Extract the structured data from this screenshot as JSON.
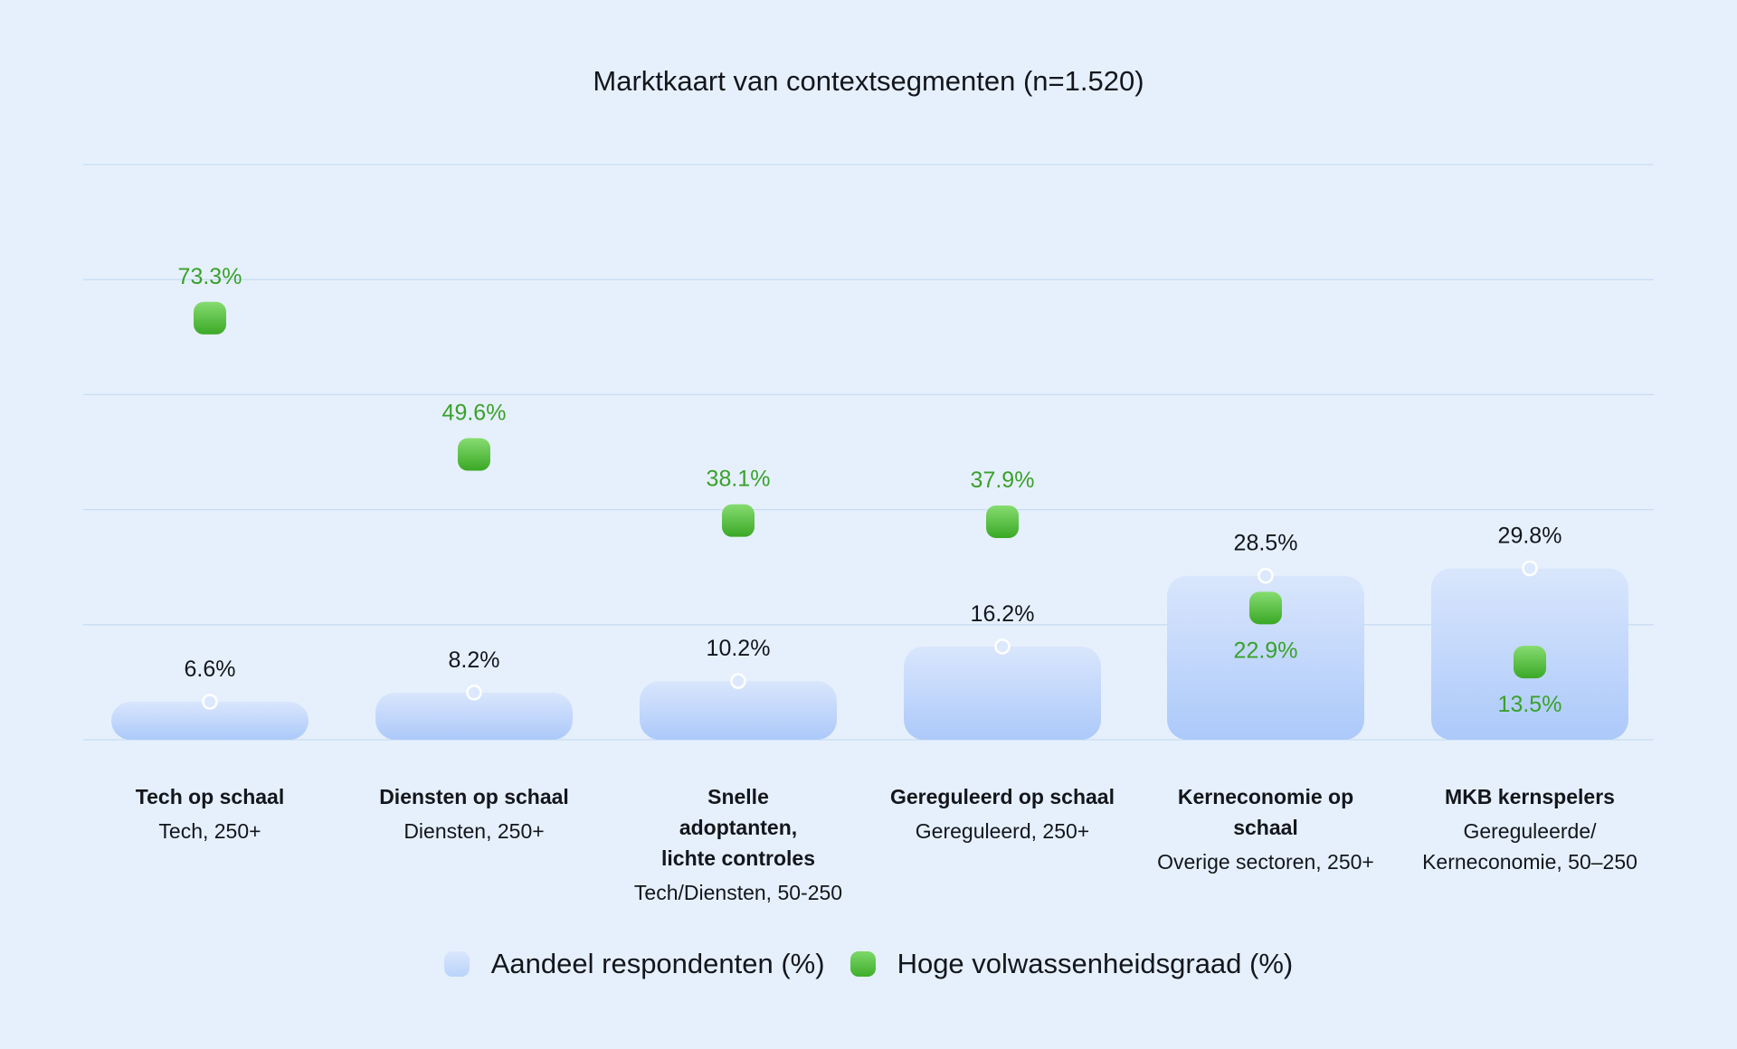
{
  "chart_data": {
    "type": "bar",
    "title": "Marktkaart van contextsegmenten (n=1.520)",
    "ylim": [
      0,
      100
    ],
    "grid": true,
    "legend_position": "bottom",
    "categories": [
      "Tech op schaal",
      "Diensten op schaal",
      "Snelle adoptanten, lichte controles",
      "Gereguleerd op schaal",
      "Kerneconomie op schaal",
      "MKB kernspelers"
    ],
    "category_details": [
      {
        "name_lines": [
          "Tech op schaal"
        ],
        "sub_lines": [
          "Tech, 250+"
        ]
      },
      {
        "name_lines": [
          "Diensten op schaal"
        ],
        "sub_lines": [
          "Diensten, 250+"
        ]
      },
      {
        "name_lines": [
          "Snelle",
          "adoptanten,",
          "lichte controles"
        ],
        "sub_lines": [
          "Tech/Diensten, 50-250"
        ]
      },
      {
        "name_lines": [
          "Gereguleerd op schaal"
        ],
        "sub_lines": [
          "Gereguleerd, 250+"
        ]
      },
      {
        "name_lines": [
          "Kerneconomie op schaal"
        ],
        "sub_lines": [
          "Overige sectoren, 250+"
        ]
      },
      {
        "name_lines": [
          "MKB kernspelers"
        ],
        "sub_lines": [
          "Gereguleerde/",
          "Kerneconomie, 50–250"
        ]
      }
    ],
    "series": [
      {
        "name": "Aandeel respondenten (%)",
        "type": "bar",
        "color": "#b9d3fa",
        "values": [
          6.6,
          8.2,
          10.2,
          16.2,
          28.5,
          29.8
        ],
        "labels": [
          "6.6%",
          "8.2%",
          "10.2%",
          "16.2%",
          "28.5%",
          "29.8%"
        ]
      },
      {
        "name": "Hoge volwassenheidsgraad (%)",
        "type": "scatter",
        "color": "#4cbc36",
        "values": [
          73.3,
          49.6,
          38.1,
          37.9,
          22.9,
          13.5
        ],
        "labels": [
          "73.3%",
          "49.6%",
          "38.1%",
          "37.9%",
          "22.9%",
          "13.5%"
        ]
      }
    ]
  },
  "colors": {
    "background": "#e6f0fd",
    "bar_top": "#dae7fc",
    "bar_bottom": "#aecbfa",
    "maturity": "#4cbc36",
    "maturity_label": "#3aa12a",
    "grid": "#c9dcf3",
    "text": "#13161c"
  }
}
